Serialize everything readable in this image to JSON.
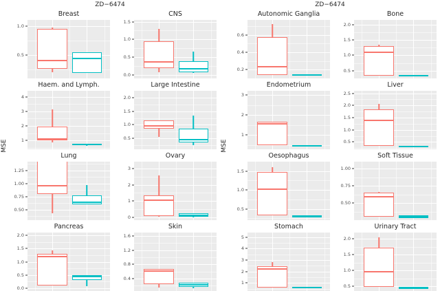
{
  "chart_data": {
    "type": "boxplot",
    "description": "Two faceted box-plot grids comparing two series (red, cyan) of MSE values across tissue types for drug ZD-6474",
    "series_colors": {
      "red": "#F8766D",
      "cyan": "#00BFC4"
    },
    "panel_bg": "#EBEBEB",
    "grid_color": "#FFFFFF",
    "legend": "none",
    "charts": [
      {
        "title": "ZD−6474",
        "ylabel": "MSE",
        "facets": [
          {
            "label": "Breast",
            "ylim": [
              0.1,
              1.1
            ],
            "ticks": [
              {
                "t": "0.5",
                "v": 0.5
              },
              {
                "t": "1.0",
                "v": 1.0
              }
            ],
            "boxes": [
              {
                "color": "red",
                "lo": 0.2,
                "q1": 0.27,
                "med": 0.4,
                "q3": 0.95,
                "hi": 0.97
              },
              {
                "color": "cyan",
                "lo": 0.2,
                "q1": 0.2,
                "med": 0.45,
                "q3": 0.55,
                "hi": 0.55
              }
            ]
          },
          {
            "label": "CNS",
            "ylim": [
              -0.1,
              1.55
            ],
            "ticks": [
              {
                "t": "0.0",
                "v": 0.0
              },
              {
                "t": "0.5",
                "v": 0.5
              },
              {
                "t": "1.0",
                "v": 1.0
              },
              {
                "t": "1.5",
                "v": 1.5
              }
            ],
            "boxes": [
              {
                "color": "red",
                "lo": 0.07,
                "q1": 0.2,
                "med": 0.35,
                "q3": 0.95,
                "hi": 1.3
              },
              {
                "color": "cyan",
                "lo": 0.05,
                "q1": 0.08,
                "med": 0.17,
                "q3": 0.38,
                "hi": 0.65
              }
            ]
          },
          {
            "label": "Haem. and Lymph.",
            "ylim": [
              0.4,
              4.4
            ],
            "ticks": [
              {
                "t": "1",
                "v": 1
              },
              {
                "t": "2",
                "v": 2
              },
              {
                "t": "3",
                "v": 3
              },
              {
                "t": "4",
                "v": 4
              }
            ],
            "boxes": [
              {
                "color": "red",
                "lo": 0.85,
                "q1": 1.0,
                "med": 1.07,
                "q3": 1.95,
                "hi": 3.15
              },
              {
                "color": "cyan",
                "lo": 0.62,
                "q1": 0.68,
                "med": 0.74,
                "q3": 0.8,
                "hi": 0.8
              }
            ]
          },
          {
            "label": "Large Intestine",
            "ylim": [
              0.1,
              2.25
            ],
            "ticks": [
              {
                "t": "0.5",
                "v": 0.5
              },
              {
                "t": "1.0",
                "v": 1.0
              },
              {
                "t": "1.5",
                "v": 1.5
              },
              {
                "t": "2.0",
                "v": 2.0
              }
            ],
            "boxes": [
              {
                "color": "red",
                "lo": 0.55,
                "q1": 0.85,
                "med": 0.95,
                "q3": 1.15,
                "hi": 1.15
              },
              {
                "color": "cyan",
                "lo": 0.25,
                "q1": 0.35,
                "med": 0.45,
                "q3": 0.85,
                "hi": 1.35
              }
            ]
          },
          {
            "label": "Lung",
            "ylim": [
              0.3,
              1.42
            ],
            "ticks": [
              {
                "t": "0.50",
                "v": 0.5
              },
              {
                "t": "0.75",
                "v": 0.75
              },
              {
                "t": "1.00",
                "v": 1.0
              },
              {
                "t": "1.25",
                "v": 1.25
              }
            ],
            "boxes": [
              {
                "color": "red",
                "lo": 0.43,
                "q1": 0.8,
                "med": 0.95,
                "q3": 1.5,
                "hi": 1.5
              },
              {
                "color": "cyan",
                "lo": 0.6,
                "q1": 0.6,
                "med": 0.63,
                "q3": 0.78,
                "hi": 0.97
              }
            ]
          },
          {
            "label": "Ovary",
            "ylim": [
              -0.15,
              3.4
            ],
            "ticks": [
              {
                "t": "0",
                "v": 0
              },
              {
                "t": "1",
                "v": 1
              },
              {
                "t": "2",
                "v": 2
              },
              {
                "t": "3",
                "v": 3
              }
            ],
            "boxes": [
              {
                "color": "red",
                "lo": 0.05,
                "q1": 0.1,
                "med": 1.1,
                "q3": 1.35,
                "hi": 2.55
              },
              {
                "color": "cyan",
                "lo": 0.02,
                "q1": 0.05,
                "med": 0.15,
                "q3": 0.28,
                "hi": 0.28
              }
            ]
          },
          {
            "label": "Pancreas",
            "ylim": [
              -0.1,
              2.1
            ],
            "ticks": [
              {
                "t": "0.0",
                "v": 0.0
              },
              {
                "t": "0.5",
                "v": 0.5
              },
              {
                "t": "1.0",
                "v": 1.0
              },
              {
                "t": "1.5",
                "v": 1.5
              },
              {
                "t": "2.0",
                "v": 2.0
              }
            ],
            "boxes": [
              {
                "color": "red",
                "lo": 0.1,
                "q1": 0.1,
                "med": 1.22,
                "q3": 1.3,
                "hi": 1.42
              },
              {
                "color": "cyan",
                "lo": 0.07,
                "q1": 0.32,
                "med": 0.45,
                "q3": 0.5,
                "hi": 0.5
              }
            ]
          },
          {
            "label": "Skin",
            "ylim": [
              0.05,
              1.7
            ],
            "ticks": [
              {
                "t": "0.4",
                "v": 0.4
              },
              {
                "t": "0.8",
                "v": 0.8
              },
              {
                "t": "1.2",
                "v": 1.2
              },
              {
                "t": "1.6",
                "v": 1.6
              }
            ],
            "boxes": [
              {
                "color": "red",
                "lo": 0.15,
                "q1": 0.24,
                "med": 0.63,
                "q3": 0.68,
                "hi": 0.68
              },
              {
                "color": "cyan",
                "lo": 0.12,
                "q1": 0.17,
                "med": 0.22,
                "q3": 0.28,
                "hi": 0.28
              }
            ]
          }
        ]
      },
      {
        "title": "ZD−6474",
        "ylabel": "MSE",
        "facets": [
          {
            "label": "Autonomic Ganglia",
            "ylim": [
              0.1,
              0.77
            ],
            "ticks": [
              {
                "t": "0.2",
                "v": 0.2
              },
              {
                "t": "0.4",
                "v": 0.4
              },
              {
                "t": "0.6",
                "v": 0.6
              }
            ],
            "boxes": [
              {
                "color": "red",
                "lo": 0.14,
                "q1": 0.14,
                "med": 0.23,
                "q3": 0.57,
                "hi": 0.72
              },
              {
                "color": "cyan",
                "lo": 0.13,
                "q1": 0.13,
                "med": 0.14,
                "q3": 0.15,
                "hi": 0.15
              }
            ]
          },
          {
            "label": "Bone",
            "ylim": [
              0.25,
              2.15
            ],
            "ticks": [
              {
                "t": "0.5",
                "v": 0.5
              },
              {
                "t": "1.0",
                "v": 1.0
              },
              {
                "t": "1.5",
                "v": 1.5
              },
              {
                "t": "2.0",
                "v": 2.0
              }
            ],
            "boxes": [
              {
                "color": "red",
                "lo": 0.35,
                "q1": 0.35,
                "med": 1.12,
                "q3": 1.3,
                "hi": 1.35
              },
              {
                "color": "cyan",
                "lo": 0.33,
                "q1": 0.33,
                "med": 0.35,
                "q3": 0.37,
                "hi": 0.37
              }
            ]
          },
          {
            "label": "Endometrium",
            "ylim": [
              0.3,
              3.2
            ],
            "ticks": [
              {
                "t": "1",
                "v": 1
              },
              {
                "t": "2",
                "v": 2
              },
              {
                "t": "3",
                "v": 3
              }
            ],
            "boxes": [
              {
                "color": "red",
                "lo": 0.5,
                "q1": 0.5,
                "med": 1.58,
                "q3": 1.65,
                "hi": 1.65
              },
              {
                "color": "cyan",
                "lo": 0.48,
                "q1": 0.48,
                "med": 0.5,
                "q3": 0.52,
                "hi": 0.52
              }
            ]
          },
          {
            "label": "Liver",
            "ylim": [
              0.2,
              2.6
            ],
            "ticks": [
              {
                "t": "0.5",
                "v": 0.5
              },
              {
                "t": "1.0",
                "v": 1.0
              },
              {
                "t": "1.5",
                "v": 1.5
              },
              {
                "t": "2.0",
                "v": 2.0
              },
              {
                "t": "2.5",
                "v": 2.5
              }
            ],
            "boxes": [
              {
                "color": "red",
                "lo": 0.35,
                "q1": 0.35,
                "med": 1.4,
                "q3": 1.85,
                "hi": 2.05
              },
              {
                "color": "cyan",
                "lo": 0.31,
                "q1": 0.31,
                "med": 0.33,
                "q3": 0.35,
                "hi": 0.35
              }
            ]
          },
          {
            "label": "Oesophagus",
            "ylim": [
              0.2,
              1.75
            ],
            "ticks": [
              {
                "t": "0.5",
                "v": 0.5
              },
              {
                "t": "1.0",
                "v": 1.0
              },
              {
                "t": "1.5",
                "v": 1.5
              }
            ],
            "boxes": [
              {
                "color": "red",
                "lo": 0.33,
                "q1": 0.33,
                "med": 1.02,
                "q3": 1.47,
                "hi": 1.6
              },
              {
                "color": "cyan",
                "lo": 0.28,
                "q1": 0.28,
                "med": 0.3,
                "q3": 0.32,
                "hi": 0.32
              }
            ]
          },
          {
            "label": "Soft Tissue",
            "ylim": [
              0.25,
              1.1
            ],
            "ticks": [
              {
                "t": "0.50",
                "v": 0.5
              },
              {
                "t": "0.75",
                "v": 0.75
              },
              {
                "t": "1.00",
                "v": 1.0
              }
            ],
            "boxes": [
              {
                "color": "red",
                "lo": 0.3,
                "q1": 0.3,
                "med": 0.6,
                "q3": 0.65,
                "hi": 0.66
              },
              {
                "color": "cyan",
                "lo": 0.28,
                "q1": 0.28,
                "med": 0.3,
                "q3": 0.32,
                "hi": 0.32
              }
            ]
          },
          {
            "label": "Stomach",
            "ylim": [
              0.3,
              5.4
            ],
            "ticks": [
              {
                "t": "1",
                "v": 1
              },
              {
                "t": "2",
                "v": 2
              },
              {
                "t": "3",
                "v": 3
              },
              {
                "t": "4",
                "v": 4
              },
              {
                "t": "5",
                "v": 5
              }
            ],
            "boxes": [
              {
                "color": "red",
                "lo": 0.6,
                "q1": 0.6,
                "med": 2.25,
                "q3": 2.45,
                "hi": 2.8
              },
              {
                "color": "cyan",
                "lo": 0.55,
                "q1": 0.55,
                "med": 0.6,
                "q3": 0.65,
                "hi": 0.65
              }
            ]
          },
          {
            "label": "Urinary Tract",
            "ylim": [
              0.35,
              2.2
            ],
            "ticks": [
              {
                "t": "0.5",
                "v": 0.5
              },
              {
                "t": "1.0",
                "v": 1.0
              },
              {
                "t": "1.5",
                "v": 1.5
              },
              {
                "t": "2.0",
                "v": 2.0
              }
            ],
            "boxes": [
              {
                "color": "red",
                "lo": 0.47,
                "q1": 0.47,
                "med": 0.96,
                "q3": 1.73,
                "hi": 2.05
              },
              {
                "color": "cyan",
                "lo": 0.42,
                "q1": 0.42,
                "med": 0.45,
                "q3": 0.48,
                "hi": 0.48
              }
            ]
          }
        ]
      }
    ]
  }
}
